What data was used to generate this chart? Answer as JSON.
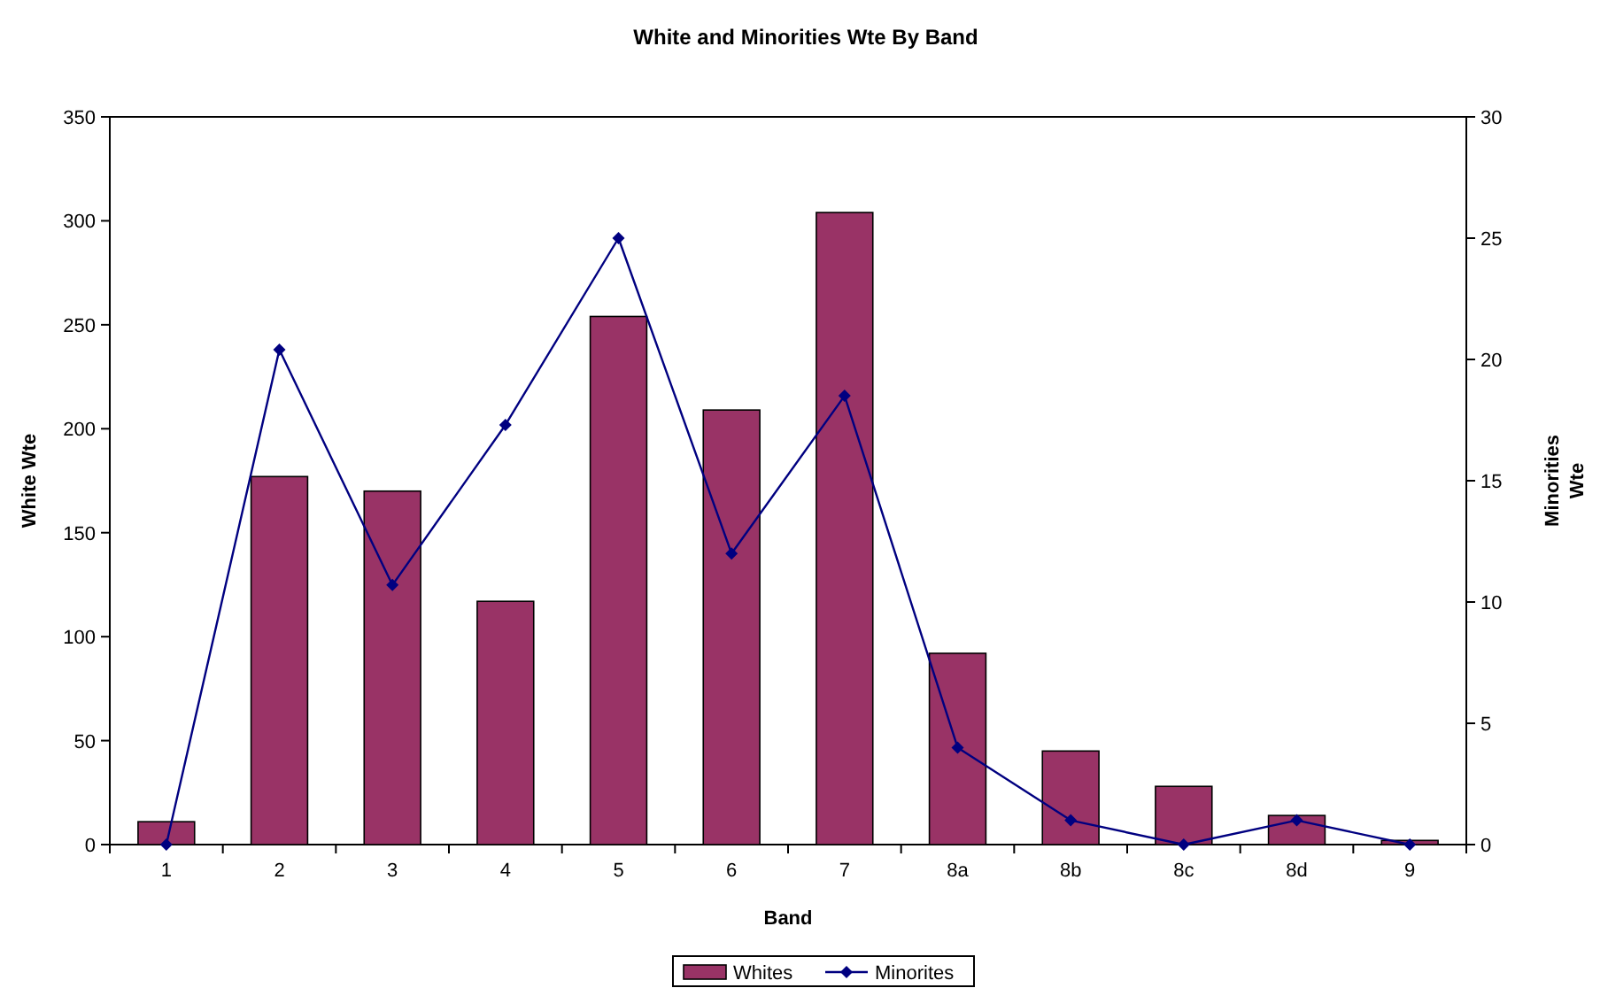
{
  "chart_data": {
    "type": "bar",
    "title": "White and Minorities Wte By Band",
    "xlabel": "Band",
    "ylabel": "White Wte",
    "y2label": "Minorities Wte",
    "categories": [
      "1",
      "2",
      "3",
      "4",
      "5",
      "6",
      "7",
      "8a",
      "8b",
      "8c",
      "8d",
      "9"
    ],
    "series": [
      {
        "name": "Whites",
        "color": "#993366",
        "values": [
          11,
          177,
          170,
          117,
          254,
          209,
          304,
          92,
          45,
          28,
          14,
          2
        ]
      },
      {
        "name": "Minorites",
        "type": "line",
        "axis": "y2",
        "color": "#000080",
        "values": [
          0,
          20.4,
          10.7,
          17.3,
          25,
          12,
          18.5,
          4,
          1,
          0,
          1,
          0
        ]
      }
    ],
    "ylim": [
      0,
      350
    ],
    "yticks": [
      0,
      50,
      100,
      150,
      200,
      250,
      300,
      350
    ],
    "y2lim": [
      0,
      30
    ],
    "y2ticks": [
      0,
      5,
      10,
      15,
      20,
      25,
      30
    ],
    "legend": "bottom",
    "marker": "diamond",
    "line_style": "solid"
  }
}
